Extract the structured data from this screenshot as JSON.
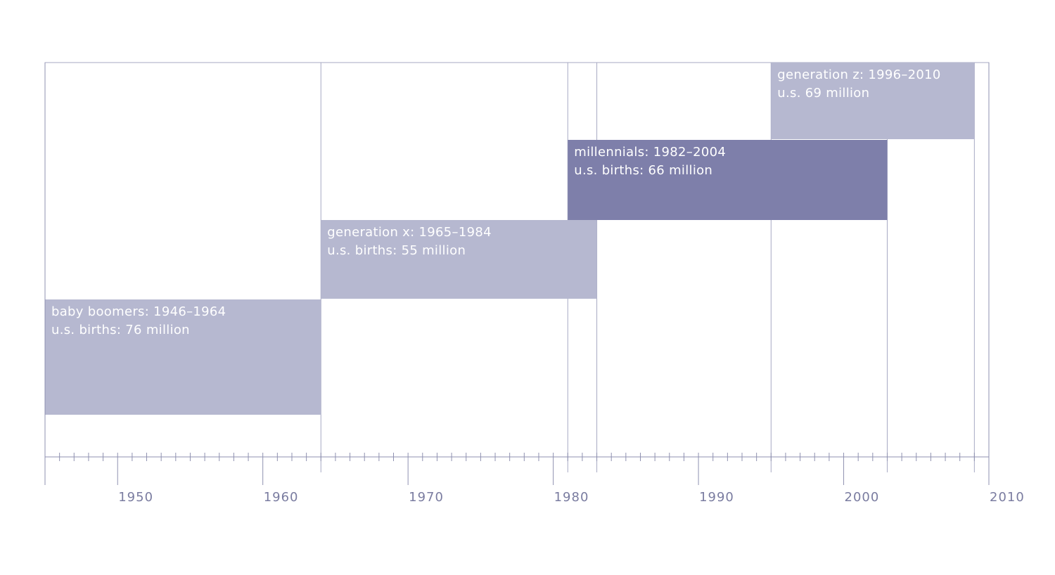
{
  "chart_data": {
    "type": "timeline",
    "title": "",
    "xlabel": "",
    "ylabel": "",
    "xlim": [
      1945,
      2010
    ],
    "x_ticks": [
      "1950",
      "1960",
      "1970",
      "1980",
      "1990",
      "2000",
      "2010"
    ],
    "grid": false,
    "series": [
      {
        "start": 1945,
        "end": 1964,
        "label": "baby boomers: 1946–1964",
        "births_label": "u.s. births: 76 million",
        "color": "#b6b8d0"
      },
      {
        "start": 1964,
        "end": 1983,
        "label": "generation x: 1965–1984",
        "births_label": "u.s. births: 55 million",
        "color": "#b6b8d0"
      },
      {
        "start": 1981,
        "end": 2003,
        "label": "millennials: 1982–2004",
        "births_label": "u.s. births: 66 million",
        "color": "#7e7faa"
      },
      {
        "start": 1995,
        "end": 2009,
        "label": "generation z: 1996–2010",
        "births_label": "u.s. 69 million",
        "color": "#b6b8d0"
      }
    ]
  }
}
